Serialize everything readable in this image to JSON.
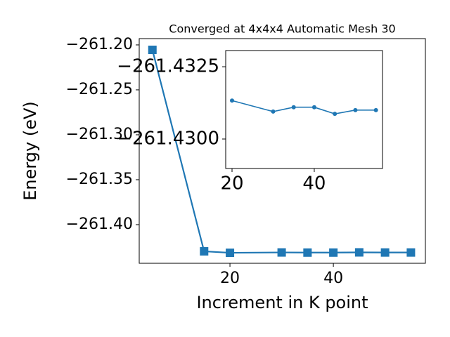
{
  "chart_data": [
    {
      "type": "line",
      "title": "Converged at 4x4x4 Automatic Mesh 30",
      "x_label": "Increment in K point",
      "y_label": "Energy (eV)",
      "x": [
        5,
        15,
        20,
        30,
        35,
        40,
        45,
        50,
        55
      ],
      "values": [
        -261.2055,
        -261.4297,
        -261.43133,
        -261.43095,
        -261.4311,
        -261.4311,
        -261.43087,
        -261.431,
        -261.431
      ],
      "color": "#1f77b4",
      "marker": "square",
      "xlim": [
        2.45,
        57.8
      ],
      "xticks": [
        20,
        40
      ],
      "ylim": [
        -261.443,
        -261.193
      ],
      "yticks": [
        {
          "value": -261.2,
          "label": "−261.20"
        },
        {
          "value": -261.25,
          "label": "−261.25"
        },
        {
          "value": -261.3,
          "label": "−261.30"
        },
        {
          "value": -261.35,
          "label": "−261.35"
        },
        {
          "value": -261.4,
          "label": "−261.40"
        }
      ]
    },
    {
      "type": "line",
      "x": [
        20,
        30,
        35,
        40,
        45,
        50,
        55
      ],
      "values": [
        -261.43133,
        -261.43095,
        -261.4311,
        -261.4311,
        -261.43087,
        -261.431,
        -261.431
      ],
      "color": "#1f77b4",
      "marker": "circle",
      "xlim": [
        18.46,
        56.6
      ],
      "xticks": [
        20,
        40
      ],
      "ylim": [
        -261.42898,
        -261.43306
      ],
      "yticks": [
        {
          "value": -261.4325,
          "label": "−261.4325"
        },
        {
          "value": -261.43,
          "label": "−261.4300"
        }
      ]
    }
  ]
}
